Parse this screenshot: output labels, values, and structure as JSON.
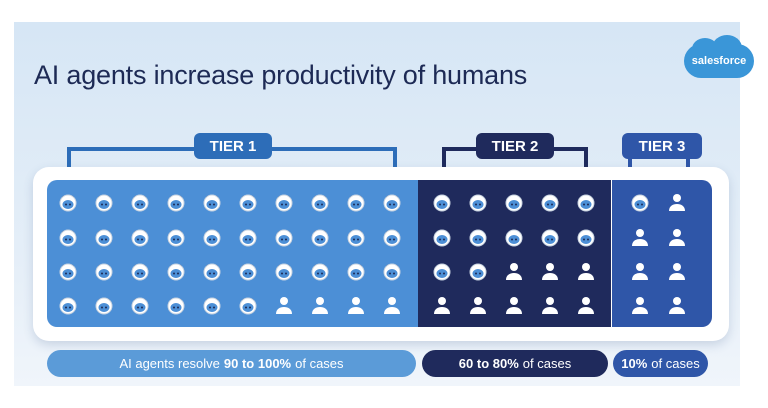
{
  "title": "AI agents increase productivity of humans",
  "logo": "salesforce",
  "colors": {
    "tier1": "#4c8fd6",
    "tier2": "#1f2a5c",
    "tier3": "#2f56a8",
    "pill1": "#5b9bd8",
    "title": "#1d2a55"
  },
  "tiers": [
    {
      "label": "TIER 1",
      "grid": [
        "AAAAAAAAAA",
        "AAAAAAAAAA",
        "AAAAAAAAAA",
        "AAAAAAHHHH"
      ],
      "pill": {
        "pre": "AI agents resolve",
        "bold": "90 to 100%",
        "post": "of cases"
      }
    },
    {
      "label": "TIER 2",
      "grid": [
        "AAAAA",
        "AAAAA",
        "AAHHH",
        "HHHHH"
      ],
      "pill": {
        "pre": "",
        "bold": "60 to 80%",
        "post": "of cases"
      }
    },
    {
      "label": "TIER 3",
      "grid": [
        "AH",
        "HH",
        "HH",
        "HH"
      ],
      "pill": {
        "pre": "",
        "bold": "10%",
        "post": "of cases"
      }
    }
  ],
  "legend": {
    "A": "ai-agent-icon",
    "H": "human-icon"
  }
}
